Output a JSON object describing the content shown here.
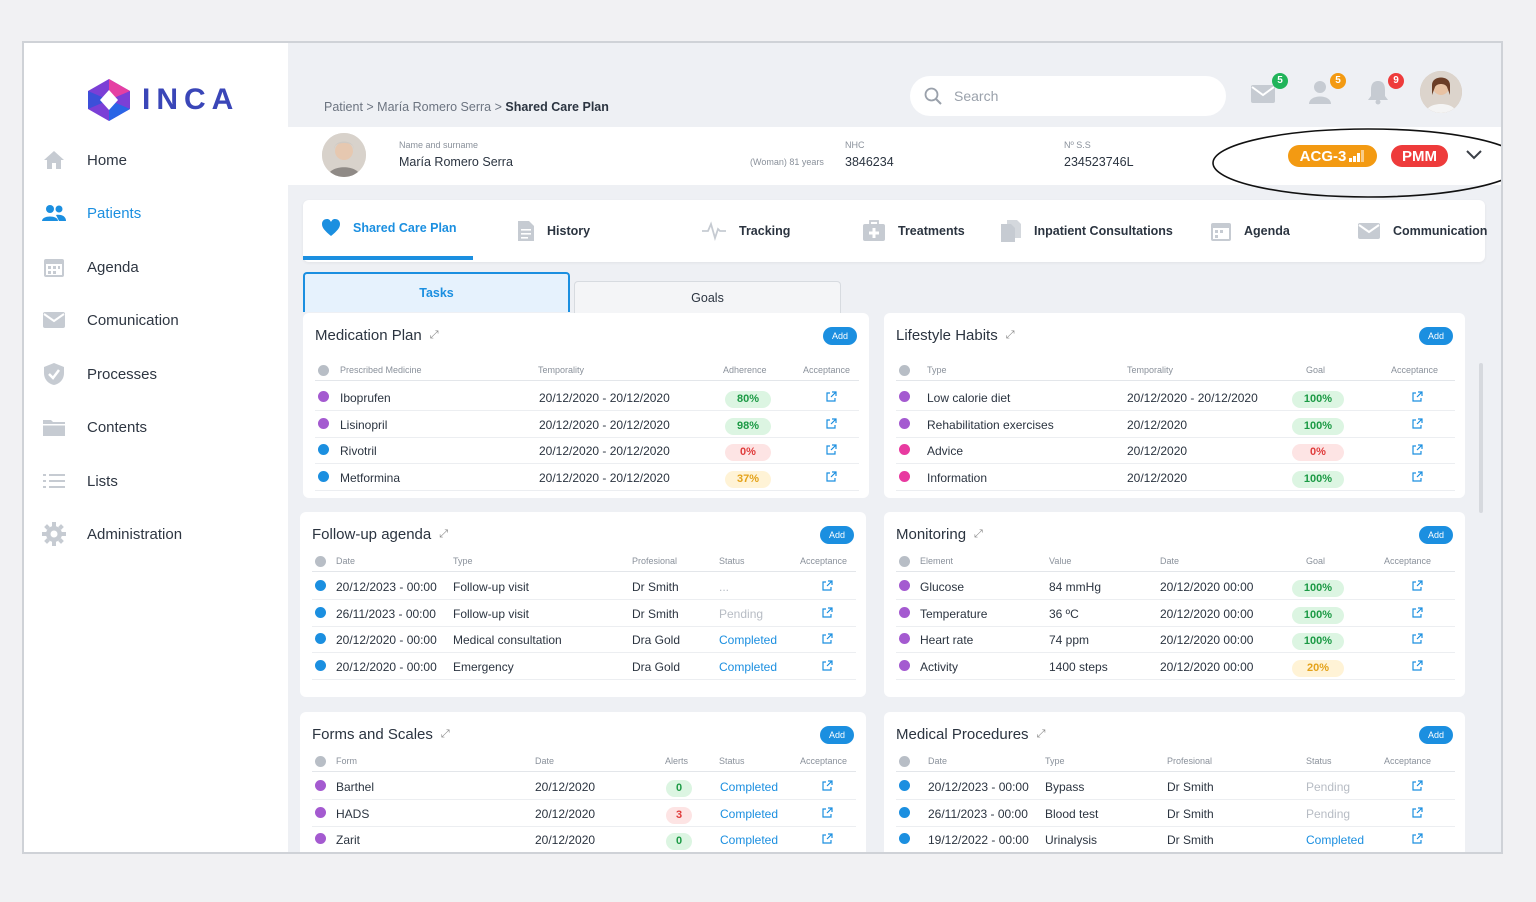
{
  "app": {
    "logo": "INCA"
  },
  "sidebar": {
    "items": [
      {
        "label": "Home",
        "icon": "home-icon"
      },
      {
        "label": "Patients",
        "icon": "patients-icon"
      },
      {
        "label": "Agenda",
        "icon": "calendar-icon"
      },
      {
        "label": "Comunication",
        "icon": "mail-icon"
      },
      {
        "label": "Processes",
        "icon": "shield-icon"
      },
      {
        "label": "Contents",
        "icon": "folder-icon"
      },
      {
        "label": "Lists",
        "icon": "list-icon"
      },
      {
        "label": "Administration",
        "icon": "gear-icon"
      }
    ]
  },
  "breadcrumb": {
    "part1": "Patient",
    "part2": "María Romero Serra",
    "current": "Shared Care Plan"
  },
  "search": {
    "placeholder": "Search"
  },
  "notifications": {
    "messages": "5",
    "users": "5",
    "alerts": "9"
  },
  "patient": {
    "name_label": "Name and surname",
    "name": "María Romero Serra",
    "meta": "(Woman) 81 years",
    "nhc_label": "NHC",
    "nhc": "3846234",
    "ss_label": "Nº S.S",
    "ss": "234523746L",
    "acg": "ACG-3",
    "pmm": "PMM"
  },
  "tabs": [
    "Shared Care Plan",
    "History",
    "Tracking",
    "Treatments",
    "Inpatient Consultations",
    "Agenda",
    "Communication"
  ],
  "subtabs": {
    "tasks": "Tasks",
    "goals": "Goals"
  },
  "add_label": "Add",
  "medication": {
    "title": "Medication Plan",
    "headers": [
      "Prescribed Medicine",
      "Temporality",
      "Adherence",
      "Acceptance"
    ],
    "rows": [
      {
        "name": "Iboprufen",
        "temp": "20/12/2020 - 20/12/2020",
        "adh": "80%",
        "color": "#a45ad0"
      },
      {
        "name": "Lisinopril",
        "temp": "20/12/2020 - 20/12/2020",
        "adh": "98%",
        "color": "#a45ad0"
      },
      {
        "name": "Rivotril",
        "temp": "20/12/2020 - 20/12/2020",
        "adh": "0%",
        "color": "#1b8fe0"
      },
      {
        "name": "Metformina",
        "temp": "20/12/2020 - 20/12/2020",
        "adh": "37%",
        "color": "#1b8fe0"
      }
    ]
  },
  "lifestyle": {
    "title": "Lifestyle Habits",
    "headers": [
      "Type",
      "Temporality",
      "Goal",
      "Acceptance"
    ],
    "rows": [
      {
        "name": "Low calorie diet",
        "temp": "20/12/2020 - 20/12/2020",
        "goal": "100%",
        "color": "#a45ad0"
      },
      {
        "name": "Rehabilitation exercises",
        "temp": "20/12/2020",
        "goal": "100%",
        "color": "#a45ad0"
      },
      {
        "name": "Advice",
        "temp": "20/12/2020",
        "goal": "0%",
        "color": "#e83aa0"
      },
      {
        "name": "Information",
        "temp": "20/12/2020",
        "goal": "100%",
        "color": "#e83aa0"
      }
    ]
  },
  "followup": {
    "title": "Follow-up agenda",
    "headers": [
      "Date",
      "Type",
      "Profesional",
      "Status",
      "Acceptance"
    ],
    "rows": [
      {
        "date": "20/12/2023 - 00:00",
        "type": "Follow-up visit",
        "prof": "Dr Smith",
        "status": "..."
      },
      {
        "date": "26/11/2023 - 00:00",
        "type": "Follow-up visit",
        "prof": "Dr Smith",
        "status": "Pending"
      },
      {
        "date": "20/12/2020 - 00:00",
        "type": "Medical consultation",
        "prof": "Dra Gold",
        "status": "Completed"
      },
      {
        "date": "20/12/2020 - 00:00",
        "type": "Emergency",
        "prof": "Dra Gold",
        "status": "Completed"
      }
    ]
  },
  "monitoring": {
    "title": "Monitoring",
    "headers": [
      "Element",
      "Value",
      "Date",
      "Goal",
      "Acceptance"
    ],
    "rows": [
      {
        "name": "Glucose",
        "value": "84 mmHg",
        "date": "20/12/2020 00:00",
        "goal": "100%"
      },
      {
        "name": "Temperature",
        "value": "36 ºC",
        "date": "20/12/2020 00:00",
        "goal": "100%"
      },
      {
        "name": "Heart rate",
        "value": "74 ppm",
        "date": "20/12/2020 00:00",
        "goal": "100%"
      },
      {
        "name": "Activity",
        "value": "1400 steps",
        "date": "20/12/2020 00:00",
        "goal": "20%"
      }
    ]
  },
  "forms": {
    "title": "Forms and Scales",
    "headers": [
      "Form",
      "Date",
      "Alerts",
      "Status",
      "Acceptance"
    ],
    "rows": [
      {
        "name": "Barthel",
        "date": "20/12/2020",
        "alerts": "0",
        "status": "Completed"
      },
      {
        "name": "HADS",
        "date": "20/12/2020",
        "alerts": "3",
        "status": "Completed"
      },
      {
        "name": "Zarit",
        "date": "20/12/2020",
        "alerts": "0",
        "status": "Completed"
      }
    ]
  },
  "procedures": {
    "title": "Medical Procedures",
    "headers": [
      "Date",
      "Type",
      "Profesional",
      "Status",
      "Acceptance"
    ],
    "rows": [
      {
        "date": "20/12/2023 - 00:00",
        "type": "Bypass",
        "prof": "Dr Smith",
        "status": "Pending"
      },
      {
        "date": "26/11/2023 - 00:00",
        "type": "Blood test",
        "prof": "Dr Smith",
        "status": "Pending"
      },
      {
        "date": "19/12/2022 - 00:00",
        "type": "Urinalysis",
        "prof": "Dr Smith",
        "status": "Completed"
      }
    ]
  },
  "colors": {
    "accent": "#1b8fe0",
    "acg": "#f39a12",
    "pmm": "#ee3b3b",
    "green": "#dcf5e2",
    "red": "#fde4e4",
    "yellow": "#fff3d6"
  }
}
